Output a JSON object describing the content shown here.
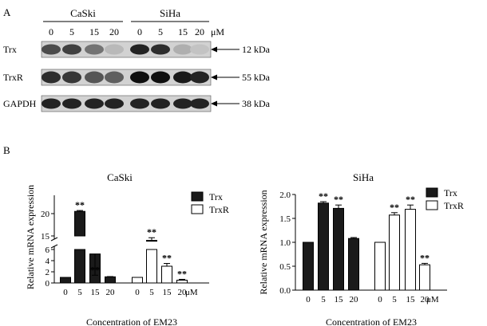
{
  "panel_a": {
    "label": "A",
    "groups": [
      {
        "name": "CaSki",
        "lanes": [
          "0",
          "5",
          "15",
          "20"
        ]
      },
      {
        "name": "SiHa",
        "lanes": [
          "0",
          "5",
          "15",
          "20"
        ]
      }
    ],
    "unit": "μM",
    "rows": [
      {
        "name": "Trx",
        "size": "12 kDa",
        "intensity": [
          0.7,
          0.75,
          0.5,
          0.15,
          0.9,
          0.85,
          0.2,
          0.1
        ]
      },
      {
        "name": "TrxR",
        "size": "55 kDa",
        "intensity": [
          0.85,
          0.8,
          0.65,
          0.6,
          1.0,
          1.0,
          0.95,
          0.9
        ]
      },
      {
        "name": "GAPDH",
        "size": "38 kDa",
        "intensity": [
          0.9,
          0.9,
          0.9,
          0.9,
          0.9,
          0.9,
          0.9,
          0.9
        ]
      }
    ]
  },
  "panel_b": {
    "label": "B"
  },
  "chart_data": [
    {
      "type": "bar",
      "title": "CaSki",
      "xlabel": "Concentration of EM23",
      "ylabel": "Relative mRNA expression",
      "categories": [
        "0",
        "5",
        "15",
        "20"
      ],
      "x_unit": "μM",
      "y_axis_break": true,
      "ylim_lower": [
        0,
        6
      ],
      "ylim_upper": [
        15,
        20
      ],
      "yticks": [
        0,
        2,
        4,
        6,
        15,
        20
      ],
      "legend": "top-right",
      "series": [
        {
          "name": "Trx",
          "fill": "#1a1a1a",
          "values": [
            1.0,
            20.5,
            5.2,
            1.1
          ],
          "errors": [
            0,
            0.2,
            1.0,
            0.05
          ],
          "significance": [
            "",
            "**",
            "**",
            ""
          ]
        },
        {
          "name": "TrxR",
          "fill": "#ffffff",
          "values": [
            1.0,
            14.0,
            3.0,
            0.5
          ],
          "errors": [
            0,
            0.6,
            0.5,
            0.15
          ],
          "significance": [
            "",
            "**",
            "**",
            "**"
          ]
        }
      ]
    },
    {
      "type": "bar",
      "title": "SiHa",
      "xlabel": "Concentration of EM23",
      "ylabel": "Relative mRNA expression",
      "categories": [
        "0",
        "5",
        "15",
        "20"
      ],
      "x_unit": "μM",
      "ylim": [
        0,
        2.0
      ],
      "yticks": [
        0.0,
        0.5,
        1.0,
        1.5,
        2.0
      ],
      "legend": "top-right",
      "series": [
        {
          "name": "Trx",
          "fill": "#1a1a1a",
          "values": [
            1.0,
            1.82,
            1.71,
            1.08
          ],
          "errors": [
            0,
            0.03,
            0.07,
            0.02
          ],
          "significance": [
            "",
            "**",
            "**",
            ""
          ]
        },
        {
          "name": "TrxR",
          "fill": "#ffffff",
          "values": [
            1.0,
            1.57,
            1.69,
            0.53
          ],
          "errors": [
            0,
            0.05,
            0.09,
            0.03
          ],
          "significance": [
            "",
            "**",
            "**",
            "**"
          ]
        }
      ]
    }
  ]
}
